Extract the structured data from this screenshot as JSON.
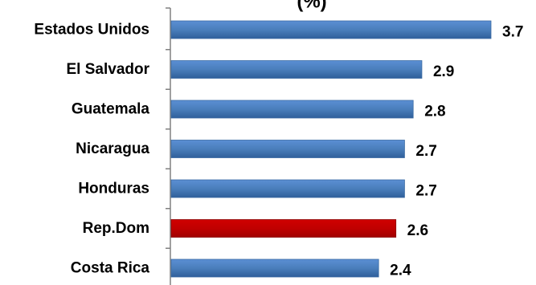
{
  "chart_data": {
    "type": "bar",
    "orientation": "horizontal",
    "title_fragment": "(%)",
    "categories": [
      "Estados Unidos",
      "El Salvador",
      "Guatemala",
      "Nicaragua",
      "Honduras",
      "Rep.Dom",
      "Costa Rica"
    ],
    "values": [
      3.7,
      2.9,
      2.8,
      2.7,
      2.7,
      2.6,
      2.4
    ],
    "value_labels": [
      "3.7",
      "2.9",
      "2.8",
      "2.7",
      "2.7",
      "2.6",
      "2.4"
    ],
    "bar_colors": [
      "#4a7ebb",
      "#4a7ebb",
      "#4a7ebb",
      "#4a7ebb",
      "#4a7ebb",
      "#c00000",
      "#4a7ebb"
    ],
    "xlim": [
      0,
      3.7
    ],
    "grid": false,
    "legend": "none"
  }
}
